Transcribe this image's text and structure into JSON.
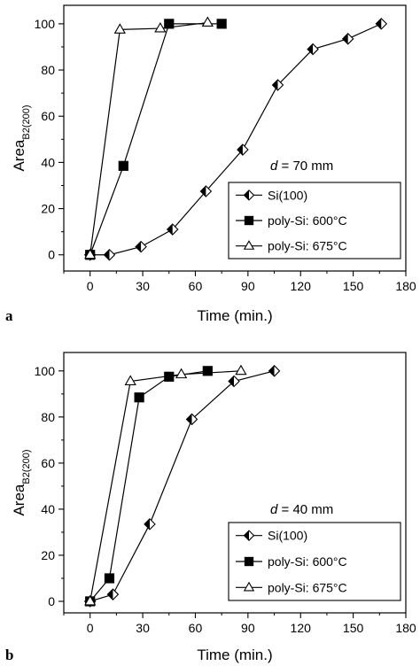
{
  "figure": {
    "panels": [
      {
        "panel_letter": "a",
        "annotation": {
          "italic": "d",
          "rest": " = 70 mm"
        }
      },
      {
        "panel_letter": "b",
        "annotation": {
          "italic": "d",
          "rest": " = 40 mm"
        }
      }
    ]
  },
  "chart_data": [
    {
      "type": "line",
      "xlabel": "Time (min.)",
      "ylabel": {
        "main": "Area",
        "sub": "B2(200)"
      },
      "xlim": [
        -15,
        180
      ],
      "ylim": [
        -7,
        108
      ],
      "xticks": [
        0,
        30,
        60,
        90,
        120,
        150,
        180
      ],
      "yticks": [
        0,
        20,
        40,
        60,
        80,
        100
      ],
      "legend_position": "right-lower",
      "series": [
        {
          "name": "Si(100)",
          "marker": "half-diamond",
          "color": "#000000",
          "x": [
            0,
            11,
            29,
            47,
            66,
            87,
            107,
            127,
            147,
            166
          ],
          "y": [
            0,
            0,
            3.5,
            11,
            27.5,
            45.5,
            73.5,
            89,
            93.5,
            100
          ]
        },
        {
          "name": "poly-Si: 600°C",
          "marker": "filled-square",
          "color": "#000000",
          "x": [
            0,
            19,
            45,
            75
          ],
          "y": [
            0,
            38.5,
            100,
            100
          ]
        },
        {
          "name": "poly-Si: 675°C",
          "marker": "open-triangle",
          "color": "#000000",
          "x": [
            0,
            17,
            40,
            67
          ],
          "y": [
            0,
            97.5,
            98,
            100.5
          ]
        }
      ]
    },
    {
      "type": "line",
      "xlabel": "Time (min.)",
      "ylabel": {
        "main": "Area",
        "sub": "B2(200)"
      },
      "xlim": [
        -15,
        180
      ],
      "ylim": [
        -5,
        108
      ],
      "xticks": [
        0,
        30,
        60,
        90,
        120,
        150,
        180
      ],
      "yticks": [
        0,
        20,
        40,
        60,
        80,
        100
      ],
      "legend_position": "right-lower",
      "series": [
        {
          "name": "Si(100)",
          "marker": "half-diamond",
          "color": "#000000",
          "x": [
            0,
            13,
            34,
            58,
            82,
            105
          ],
          "y": [
            0,
            3,
            33.5,
            79,
            95.5,
            100
          ]
        },
        {
          "name": "poly-Si: 600°C",
          "marker": "filled-square",
          "color": "#000000",
          "x": [
            0,
            11,
            28,
            45,
            67
          ],
          "y": [
            0,
            10,
            88.5,
            97.5,
            100
          ]
        },
        {
          "name": "poly-Si: 675°C",
          "marker": "open-triangle",
          "color": "#000000",
          "x": [
            0,
            23,
            52,
            86
          ],
          "y": [
            0,
            95.5,
            98.5,
            100
          ]
        }
      ]
    }
  ]
}
